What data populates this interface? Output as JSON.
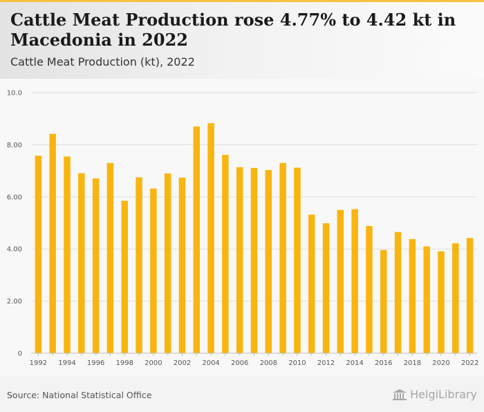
{
  "header": {
    "title": "Cattle Meat Production rose 4.77% to 4.42 kt in Macedonia in 2022",
    "subtitle": "Cattle Meat Production (kt), 2022"
  },
  "footer": {
    "source": "Source: National Statistical Office",
    "logo_text": "HelgiLibrary"
  },
  "colors": {
    "bar": "#f9b50f",
    "accent": "#f5c242",
    "grid": "#dddddd",
    "tick_text": "#555555"
  },
  "chart_data": {
    "type": "bar",
    "title": "Cattle Meat Production rose 4.77% to 4.42 kt in Macedonia in 2022",
    "subtitle": "Cattle Meat Production (kt), 2022",
    "xlabel": "",
    "ylabel": "",
    "ylim": [
      0,
      10
    ],
    "yticks": [
      0,
      2,
      4,
      6,
      8,
      10
    ],
    "ytick_labels": [
      "0",
      "2.00",
      "4.00",
      "6.00",
      "8.00",
      "10.0"
    ],
    "grid": true,
    "legend": "none",
    "categories": [
      "1992",
      "1993",
      "1994",
      "1995",
      "1996",
      "1997",
      "1998",
      "1999",
      "2000",
      "2001",
      "2002",
      "2003",
      "2004",
      "2005",
      "2006",
      "2007",
      "2008",
      "2009",
      "2010",
      "2011",
      "2012",
      "2013",
      "2014",
      "2015",
      "2016",
      "2017",
      "2018",
      "2019",
      "2020",
      "2021",
      "2022"
    ],
    "xtick_labels": [
      "1992",
      "1994",
      "1996",
      "1998",
      "2000",
      "2002",
      "2004",
      "2006",
      "2008",
      "2010",
      "2012",
      "2014",
      "2016",
      "2018",
      "2020",
      "2022"
    ],
    "series": [
      {
        "values": [
          7.58,
          8.42,
          7.55,
          6.91,
          6.71,
          7.3,
          5.85,
          6.75,
          6.32,
          6.9,
          6.74,
          8.7,
          8.83,
          7.61,
          7.14,
          7.11,
          7.03,
          7.3,
          7.12,
          5.32,
          4.99,
          5.5,
          5.53,
          4.88,
          3.96,
          4.65,
          4.38,
          4.1,
          3.91,
          4.22,
          4.42
        ]
      }
    ]
  }
}
